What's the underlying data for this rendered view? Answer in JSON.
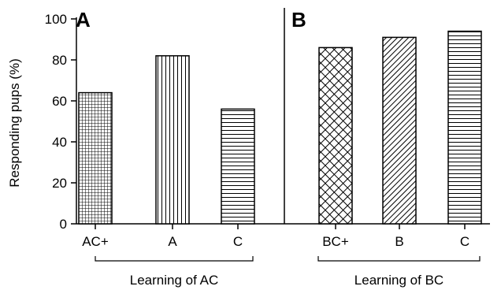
{
  "chart_data": {
    "type": "bar",
    "ylabel": "Responding pups (%)",
    "ylim": [
      0,
      100
    ],
    "yticks": [
      0,
      20,
      40,
      60,
      80,
      100
    ],
    "grid": false,
    "panels": [
      {
        "label": "A",
        "group_label": "Learning of AC",
        "categories": [
          "AC+",
          "A",
          "C"
        ],
        "values": [
          64,
          82,
          56
        ],
        "patterns": [
          "grid",
          "vertical",
          "horizontal"
        ]
      },
      {
        "label": "B",
        "group_label": "Learning of BC",
        "categories": [
          "BC+",
          "B",
          "C"
        ],
        "values": [
          86,
          91,
          94
        ],
        "patterns": [
          "crosshatch-diagonal",
          "diagonal",
          "horizontal"
        ]
      }
    ],
    "colors": {
      "stroke": "#000000",
      "fill": "#ffffff"
    }
  }
}
